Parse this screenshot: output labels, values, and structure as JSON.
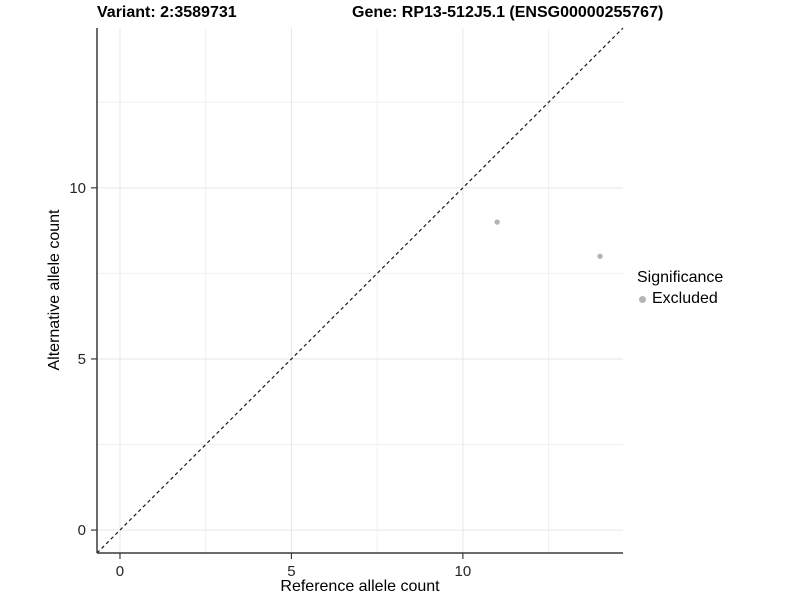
{
  "chart_data": {
    "type": "scatter",
    "title_left": "Variant: 2:3589731",
    "title_right": "Gene: RP13-512J5.1 (ENSG00000255767)",
    "xlabel": "Reference allele count",
    "ylabel": "Alternative allele count",
    "xlim": [
      -0.67,
      14.67
    ],
    "ylim": [
      -0.67,
      14.67
    ],
    "x_ticks": [
      0,
      5,
      10
    ],
    "y_ticks": [
      0,
      5,
      10
    ],
    "x_minor_ticks": [
      2.5,
      7.5,
      12.5
    ],
    "y_minor_ticks": [
      2.5,
      7.5,
      12.5
    ],
    "grid": "major-and-minor, light gray on white",
    "legend_position": "right-center",
    "series": [
      {
        "name": "Excluded",
        "color": "#b5b5b5",
        "points": [
          {
            "x": 11,
            "y": 9
          },
          {
            "x": 14,
            "y": 8
          }
        ]
      }
    ],
    "reference_line": {
      "description": "identity line y = x",
      "slope": 1,
      "intercept": 0,
      "style": "dashed",
      "color": "#1a1a1a"
    },
    "legend": {
      "title": "Significance",
      "entries": [
        {
          "label": "Excluded",
          "color": "#b5b5b5",
          "icon": "point-dot-icon"
        }
      ]
    }
  },
  "colors": {
    "background": "#ffffff",
    "axis_line": "#3a3a3a",
    "grid_major": "#e6e6e6",
    "grid_minor": "#f0f0f0",
    "tick_label": "#262626",
    "point": "#b5b5b5",
    "dashed_line": "#1a1a1a"
  }
}
